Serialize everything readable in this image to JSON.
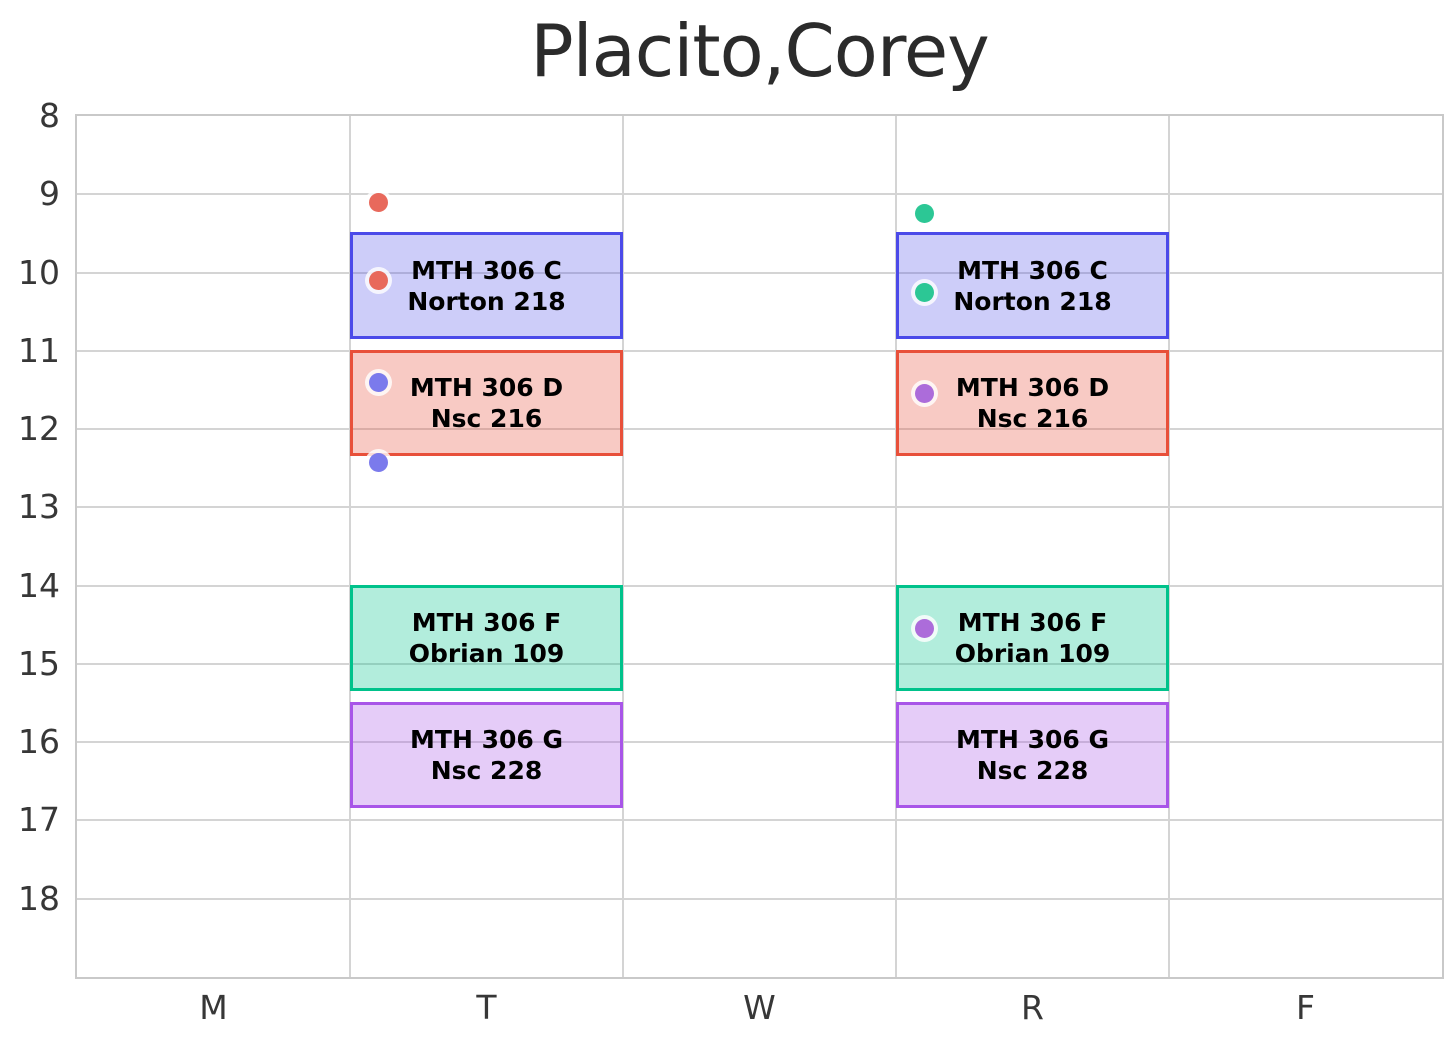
{
  "chart_data": {
    "type": "schedule",
    "title": "Placito,Corey",
    "x_axis": {
      "labels": [
        "M",
        "T",
        "W",
        "R",
        "F"
      ]
    },
    "y_axis": {
      "ticks": [
        "8",
        "9",
        "10",
        "11",
        "12",
        "13",
        "14",
        "15",
        "16",
        "17",
        "18"
      ],
      "min": 8,
      "max": 19,
      "unit": "hour-of-day"
    },
    "grid": "on",
    "blocks": [
      {
        "day": "T",
        "start": 9.5,
        "end": 10.833,
        "course": "MTH 306 C",
        "room": "Norton 218",
        "border": "#4b4ae9",
        "fill": "rgba(75,74,233,0.28)"
      },
      {
        "day": "T",
        "start": 11.0,
        "end": 12.333,
        "course": "MTH 306 D",
        "room": "Nsc 216",
        "border": "#e8503a",
        "fill": "rgba(232,80,58,0.30)"
      },
      {
        "day": "T",
        "start": 14.0,
        "end": 15.333,
        "course": "MTH 306 F",
        "room": "Obrian 109",
        "border": "#00c28b",
        "fill": "rgba(0,194,139,0.30)"
      },
      {
        "day": "T",
        "start": 15.5,
        "end": 16.833,
        "course": "MTH 306 G",
        "room": "Nsc 228",
        "border": "#a855e8",
        "fill": "rgba(168,85,232,0.30)"
      },
      {
        "day": "R",
        "start": 9.5,
        "end": 10.833,
        "course": "MTH 306 C",
        "room": "Norton 218",
        "border": "#4b4ae9",
        "fill": "rgba(75,74,233,0.28)"
      },
      {
        "day": "R",
        "start": 11.0,
        "end": 12.333,
        "course": "MTH 306 D",
        "room": "Nsc 216",
        "border": "#e8503a",
        "fill": "rgba(232,80,58,0.30)"
      },
      {
        "day": "R",
        "start": 14.0,
        "end": 15.333,
        "course": "MTH 306 F",
        "room": "Obrian 109",
        "border": "#00c28b",
        "fill": "rgba(0,194,139,0.30)"
      },
      {
        "day": "R",
        "start": 15.5,
        "end": 16.833,
        "course": "MTH 306 G",
        "room": "Nsc 228",
        "border": "#a855e8",
        "fill": "rgba(168,85,232,0.30)"
      }
    ],
    "scatter": [
      {
        "day": "T",
        "time": 9.11,
        "color": "#e8695c"
      },
      {
        "day": "T",
        "time": 10.1,
        "color": "#e8695c"
      },
      {
        "day": "T",
        "time": 11.4,
        "color": "#7b7aec"
      },
      {
        "day": "T",
        "time": 12.43,
        "color": "#7b7aec"
      },
      {
        "day": "R",
        "time": 9.25,
        "color": "#2cc795"
      },
      {
        "day": "R",
        "time": 10.26,
        "color": "#2cc795"
      },
      {
        "day": "R",
        "time": 11.55,
        "color": "#ac6cda"
      },
      {
        "day": "R",
        "time": 14.55,
        "color": "#ac6cda"
      }
    ],
    "style": {
      "gridline_color": "#d4d4d4",
      "frame_color": "#c9c9c9",
      "tick_label_color": "#373737",
      "title_color": "#2b2b2b",
      "block_text_color": "#000000"
    }
  }
}
